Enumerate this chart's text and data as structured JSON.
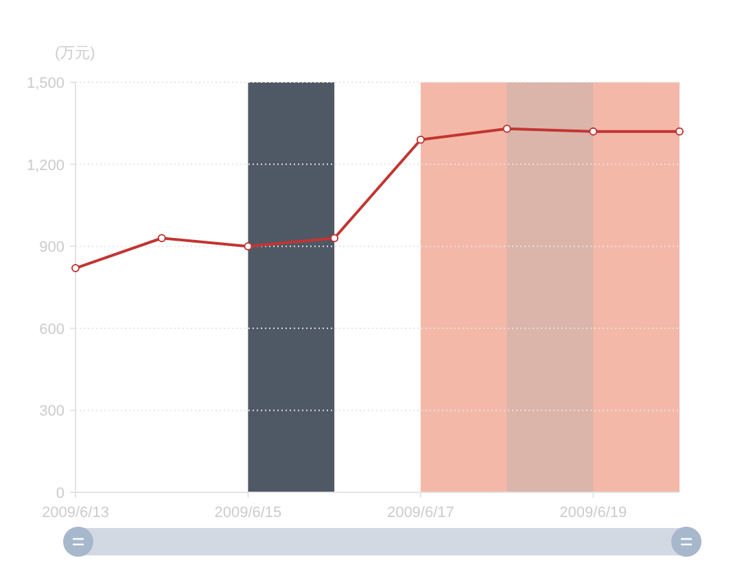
{
  "chart_data": {
    "type": "line",
    "ylabel": "(万元)",
    "x": [
      "2009-06-13",
      "2009-06-14",
      "2009-06-15",
      "2009-06-16",
      "2009-06-17",
      "2009-06-18",
      "2009-06-19",
      "2009-06-20"
    ],
    "xlim": [
      "2009-06-13",
      "2009-06-20"
    ],
    "xticks": [
      {
        "value": "2009-06-13",
        "label": "2009/6/13"
      },
      {
        "value": "2009-06-15",
        "label": "2009/6/15"
      },
      {
        "value": "2009-06-17",
        "label": "2009/6/17"
      },
      {
        "value": "2009-06-19",
        "label": "2009/6/19"
      }
    ],
    "ylim": [
      0,
      1500
    ],
    "yticks": [
      0,
      300,
      600,
      900,
      {
        "value": 1200,
        "label": "1,200"
      },
      {
        "value": 1500,
        "label": "1,500"
      }
    ],
    "series": [
      {
        "color": "#c23531",
        "values": [
          820,
          930,
          900,
          930,
          1290,
          1330,
          1320,
          1320
        ]
      }
    ],
    "bands": [
      {
        "axis": "x",
        "from": "2009-06-15",
        "to": "2009-06-16",
        "color": "#4f5865"
      },
      {
        "axis": "x",
        "from": "2009-06-17",
        "to": "2009-06-20",
        "color": "#f4b8a8"
      },
      {
        "axis": "x",
        "from": "2009-06-18",
        "to": "2009-06-19",
        "color": "#dbb4aa"
      }
    ],
    "grid": "y",
    "marker": "circle",
    "line_style": "solid"
  }
}
